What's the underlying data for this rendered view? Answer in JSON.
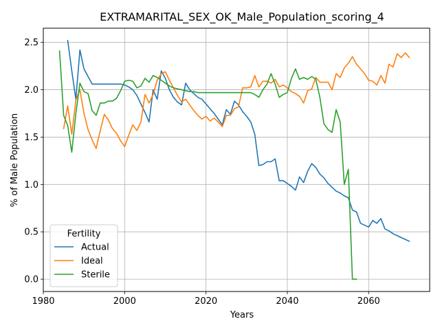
{
  "chart_data": {
    "type": "line",
    "title": "EXTRAMARITAL_SEX_OK_Male_Population_scoring_4",
    "xlabel": "Years",
    "ylabel": "% of Male Population",
    "xlim": [
      1980,
      2075
    ],
    "ylim": [
      -0.13,
      2.65
    ],
    "xticks": [
      1980,
      2000,
      2020,
      2040,
      2060
    ],
    "yticks": [
      0.0,
      0.5,
      1.0,
      1.5,
      2.0,
      2.5
    ],
    "ytick_labels": [
      "0.0",
      "0.5",
      "1.0",
      "1.5",
      "2.0",
      "2.5"
    ],
    "grid": true,
    "legend": {
      "title": "Fertility",
      "position": "lower-left"
    },
    "series": [
      {
        "name": "Actual",
        "color": "#1f77b4",
        "x": [
          1986,
          1987,
          1988,
          1989,
          1990,
          1991,
          1992,
          1993,
          1994,
          1995,
          1996,
          1997,
          1998,
          1999,
          2000,
          2001,
          2002,
          2003,
          2004,
          2005,
          2006,
          2007,
          2008,
          2009,
          2010,
          2011,
          2012,
          2013,
          2014,
          2015,
          2016,
          2017,
          2018,
          2019,
          2020,
          2021,
          2022,
          2023,
          2024,
          2025,
          2026,
          2027,
          2028,
          2029,
          2030,
          2031,
          2032,
          2033,
          2034,
          2035,
          2036,
          2037,
          2038,
          2039,
          2040,
          2041,
          2042,
          2043,
          2044,
          2045,
          2046,
          2047,
          2048,
          2049,
          2050,
          2051,
          2052,
          2053,
          2054,
          2055,
          2056,
          2057,
          2058,
          2059,
          2060,
          2061,
          2062,
          2063,
          2064,
          2065,
          2066,
          2067,
          2068,
          2069,
          2070
        ],
        "y": [
          2.52,
          2.2,
          1.9,
          2.42,
          2.22,
          2.14,
          2.06,
          2.06,
          2.06,
          2.06,
          2.06,
          2.06,
          2.06,
          2.06,
          2.05,
          2.03,
          2.0,
          1.94,
          1.85,
          1.76,
          1.66,
          2.0,
          1.9,
          2.2,
          2.12,
          2.0,
          1.92,
          1.87,
          1.84,
          2.07,
          2.0,
          1.96,
          1.92,
          1.9,
          1.85,
          1.8,
          1.75,
          1.69,
          1.63,
          1.79,
          1.74,
          1.88,
          1.84,
          1.77,
          1.72,
          1.66,
          1.53,
          1.2,
          1.21,
          1.24,
          1.24,
          1.27,
          1.04,
          1.04,
          1.01,
          0.98,
          0.94,
          1.08,
          1.02,
          1.14,
          1.22,
          1.18,
          1.11,
          1.07,
          1.01,
          0.97,
          0.93,
          0.91,
          0.88,
          0.86,
          0.73,
          0.71,
          0.59,
          0.57,
          0.55,
          0.62,
          0.59,
          0.64,
          0.53,
          0.51,
          0.48,
          0.46,
          0.44,
          0.42,
          0.4
        ]
      },
      {
        "name": "Ideal",
        "color": "#ff7f0e",
        "x": [
          1985,
          1986,
          1987,
          1988,
          1989,
          1990,
          1991,
          1992,
          1993,
          1994,
          1995,
          1996,
          1997,
          1998,
          1999,
          2000,
          2001,
          2002,
          2003,
          2004,
          2005,
          2006,
          2007,
          2008,
          2009,
          2010,
          2011,
          2012,
          2013,
          2014,
          2015,
          2016,
          2017,
          2018,
          2019,
          2020,
          2021,
          2022,
          2023,
          2024,
          2025,
          2026,
          2027,
          2028,
          2029,
          2030,
          2031,
          2032,
          2033,
          2034,
          2035,
          2036,
          2037,
          2038,
          2039,
          2040,
          2041,
          2042,
          2043,
          2044,
          2045,
          2046,
          2047,
          2048,
          2049,
          2050,
          2051,
          2052,
          2053,
          2054,
          2055,
          2056,
          2057,
          2058,
          2059,
          2060,
          2061,
          2062,
          2063,
          2064,
          2065,
          2066,
          2067,
          2068,
          2069,
          2070
        ],
        "y": [
          1.59,
          1.83,
          1.53,
          1.89,
          2.0,
          1.75,
          1.58,
          1.47,
          1.38,
          1.57,
          1.74,
          1.68,
          1.59,
          1.54,
          1.46,
          1.4,
          1.52,
          1.63,
          1.57,
          1.66,
          1.95,
          1.86,
          1.95,
          2.1,
          2.17,
          2.19,
          2.1,
          2.02,
          1.94,
          1.87,
          1.9,
          1.84,
          1.78,
          1.73,
          1.69,
          1.72,
          1.67,
          1.7,
          1.66,
          1.61,
          1.73,
          1.73,
          1.8,
          1.82,
          2.02,
          2.02,
          2.03,
          2.15,
          2.03,
          2.09,
          2.09,
          2.07,
          2.11,
          2.03,
          2.05,
          2.02,
          1.98,
          1.96,
          1.93,
          1.86,
          1.99,
          2.01,
          2.13,
          2.08,
          2.08,
          2.08,
          2.0,
          2.17,
          2.13,
          2.23,
          2.28,
          2.35,
          2.27,
          2.22,
          2.17,
          2.1,
          2.09,
          2.05,
          2.15,
          2.07,
          2.27,
          2.24,
          2.38,
          2.34,
          2.39,
          2.34
        ]
      },
      {
        "name": "Sterile",
        "color": "#2ca02c",
        "x": [
          1984,
          1985,
          1986,
          1987,
          1988,
          1989,
          1990,
          1991,
          1992,
          1993,
          1994,
          1995,
          1996,
          1997,
          1998,
          1999,
          2000,
          2001,
          2002,
          2003,
          2004,
          2005,
          2006,
          2007,
          2008,
          2009,
          2010,
          2011,
          2012,
          2013,
          2014,
          2015,
          2016,
          2017,
          2018,
          2019,
          2020,
          2021,
          2022,
          2023,
          2024,
          2025,
          2026,
          2027,
          2028,
          2029,
          2030,
          2031,
          2032,
          2033,
          2034,
          2035,
          2036,
          2037,
          2038,
          2039,
          2040,
          2041,
          2042,
          2043,
          2044,
          2045,
          2046,
          2047,
          2048,
          2049,
          2050,
          2051,
          2052,
          2053,
          2054,
          2055,
          2056,
          2057
        ],
        "y": [
          2.41,
          1.73,
          1.62,
          1.34,
          1.75,
          2.07,
          1.98,
          1.96,
          1.78,
          1.73,
          1.86,
          1.86,
          1.88,
          1.88,
          1.91,
          1.99,
          2.09,
          2.1,
          2.09,
          2.02,
          2.04,
          2.12,
          2.08,
          2.15,
          2.13,
          2.1,
          2.07,
          2.04,
          2.02,
          2.01,
          2.0,
          1.99,
          1.98,
          1.98,
          1.97,
          1.97,
          1.97,
          1.97,
          1.97,
          1.97,
          1.97,
          1.97,
          1.97,
          1.97,
          1.97,
          1.97,
          1.97,
          1.97,
          1.95,
          1.92,
          2.0,
          2.06,
          2.17,
          2.06,
          1.92,
          1.95,
          1.97,
          2.12,
          2.22,
          2.11,
          2.13,
          2.11,
          2.14,
          2.11,
          1.92,
          1.64,
          1.58,
          1.55,
          1.79,
          1.66,
          1.0,
          1.16,
          0.0,
          0.0
        ]
      }
    ]
  }
}
